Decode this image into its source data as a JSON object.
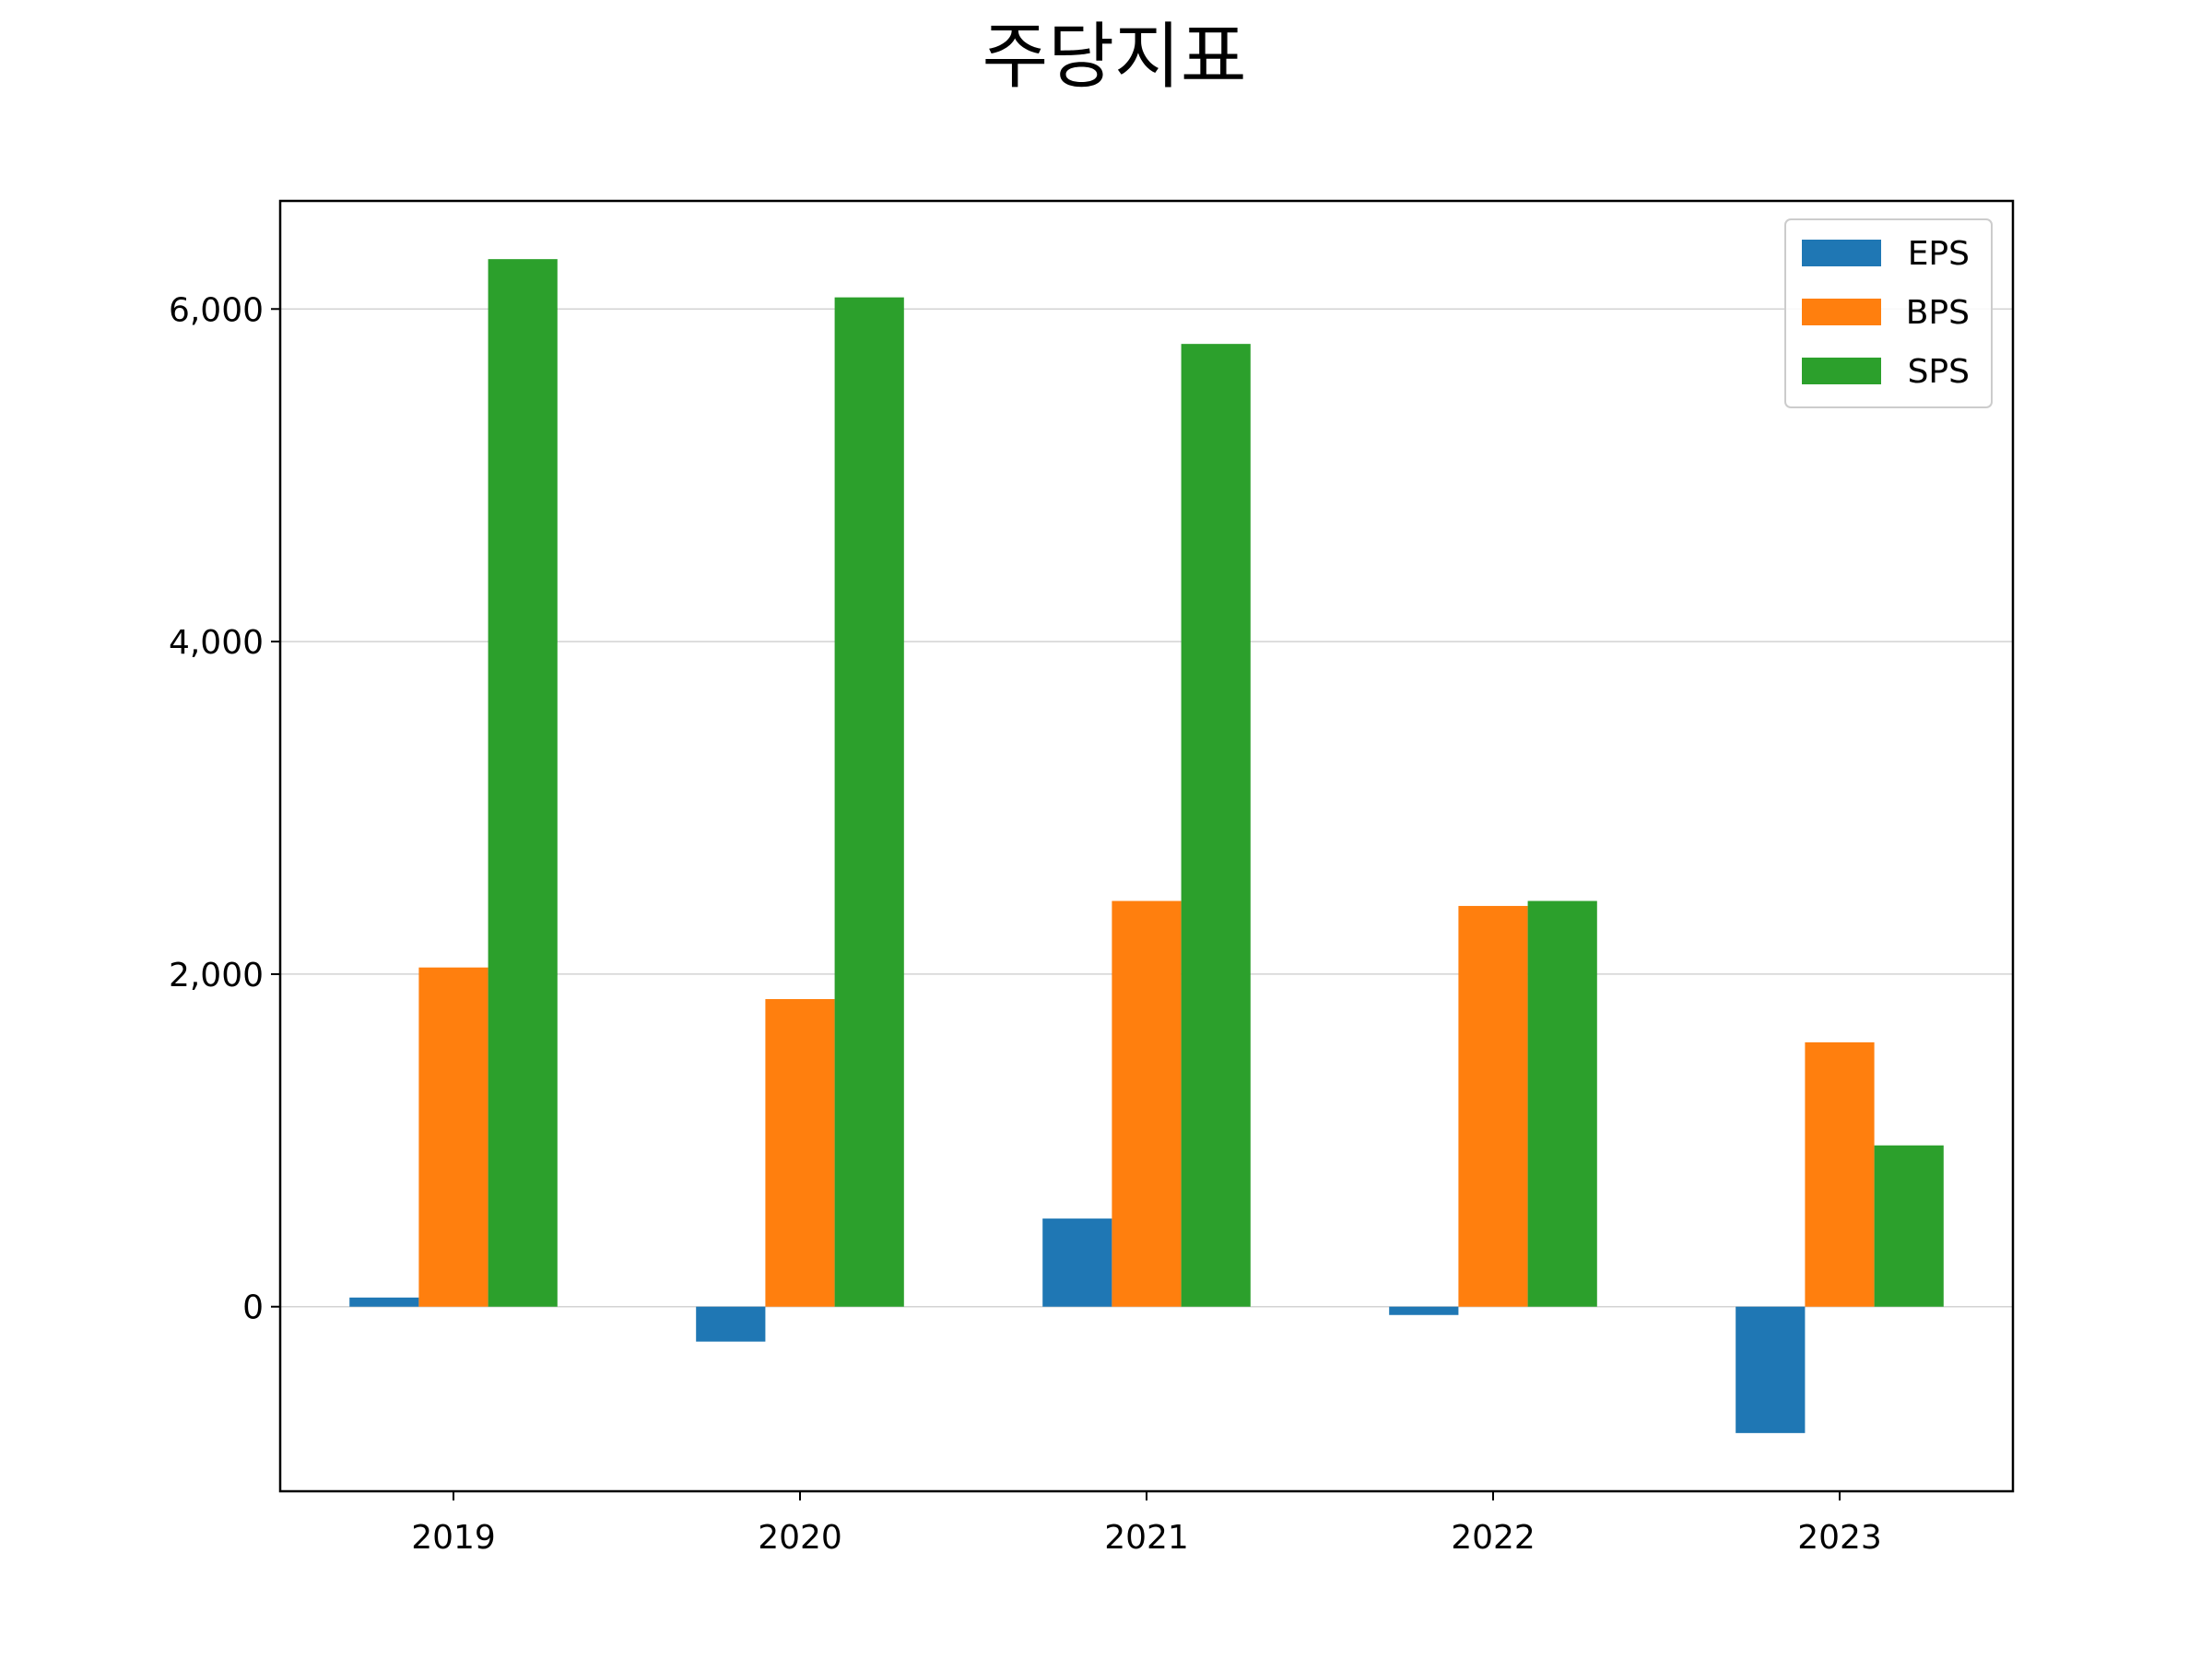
{
  "chart_data": {
    "type": "bar",
    "title": "주당지표",
    "xlabel": "",
    "ylabel": "",
    "categories": [
      "2019",
      "2020",
      "2021",
      "2022",
      "2023"
    ],
    "series": [
      {
        "name": "EPS",
        "color": "#1f77b4",
        "values": [
          55,
          -210,
          530,
          -50,
          -760
        ]
      },
      {
        "name": "BPS",
        "color": "#ff7f0e",
        "values": [
          2040,
          1850,
          2440,
          2410,
          1590
        ]
      },
      {
        "name": "SPS",
        "color": "#2ca02c",
        "values": [
          6300,
          6070,
          5790,
          2440,
          970
        ]
      }
    ],
    "ylim": [
      -1110,
      6650
    ],
    "yticks": [
      0,
      2000,
      4000,
      6000
    ],
    "ytick_labels": [
      "0",
      "2,000",
      "4,000",
      "6,000"
    ],
    "grid": "horizontal",
    "legend_position": "top-right"
  }
}
